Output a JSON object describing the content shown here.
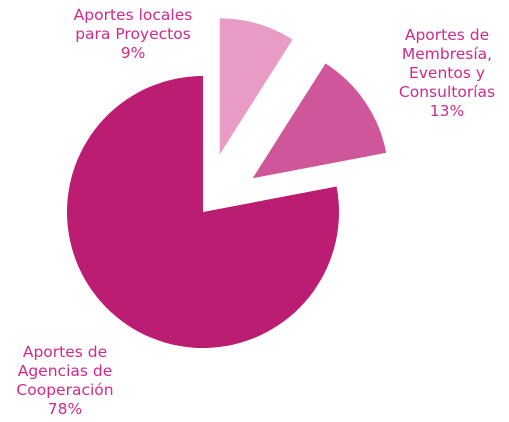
{
  "chart_data": {
    "type": "pie",
    "categories": [
      "Aportes locales\npara Proyectos",
      "Aportes de\nMembresía,\nEventos y\nConsultorías",
      "Aportes de\nAgencias de\nCooperación"
    ],
    "values": [
      9,
      13,
      78
    ],
    "value_labels": [
      "9%",
      "13%",
      "78%"
    ],
    "colors": [
      "#e89bc4",
      "#d0569a",
      "#bb1d72"
    ],
    "exploded": [
      true,
      true,
      false
    ]
  }
}
